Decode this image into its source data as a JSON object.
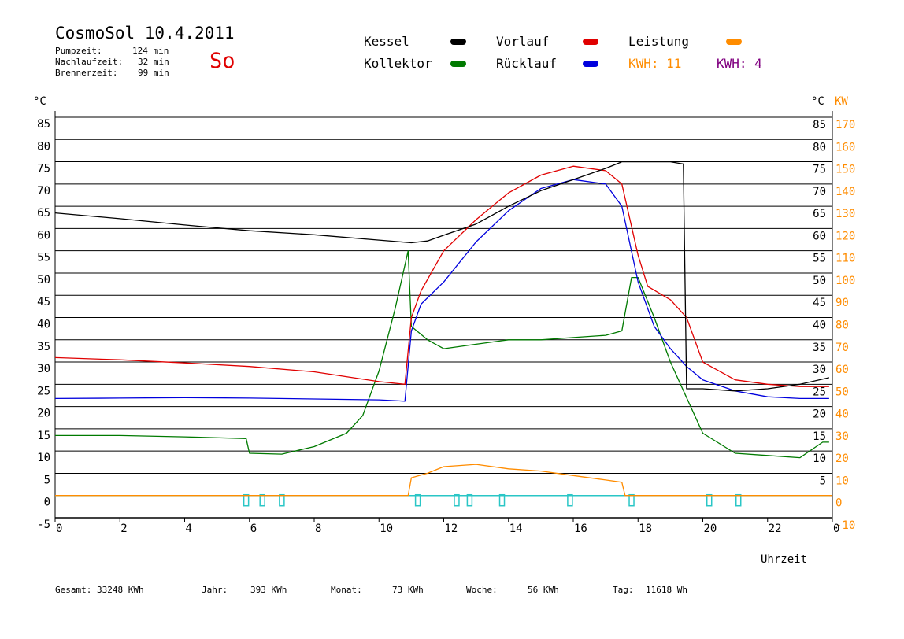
{
  "header": {
    "title": "CosmoSol 10.4.2011",
    "day": "So",
    "stats": [
      {
        "label": "Pumpzeit:",
        "value": "124 min"
      },
      {
        "label": "Nachlaufzeit:",
        "value": "32 min"
      },
      {
        "label": "Brennerzeit:",
        "value": "99 min"
      }
    ]
  },
  "legend": {
    "kessel": {
      "label": "Kessel",
      "color": "#000000"
    },
    "vorlauf": {
      "label": "Vorlauf",
      "color": "#e00000"
    },
    "leistung": {
      "label": "Leistung",
      "color": "#ff8c00"
    },
    "kollektor": {
      "label": "Kollektor",
      "color": "#007a00"
    },
    "ruecklauf": {
      "label": "Rücklauf",
      "color": "#0000dd"
    },
    "kwh1": {
      "label": "KWH: 11",
      "color": "#ff8c00"
    },
    "kwh2": {
      "label": "KWH: 4",
      "color": "#800080"
    }
  },
  "footer": [
    {
      "label": "Gesamt:",
      "value": "33248 KWh"
    },
    {
      "label": "Jahr:",
      "value": "393 KWh"
    },
    {
      "label": "Monat:",
      "value": "73 KWh"
    },
    {
      "label": "Woche:",
      "value": "56 KWh"
    },
    {
      "label": "Tag:",
      "value": "11618 Wh"
    }
  ],
  "chart_data": {
    "type": "line",
    "xlabel": "Uhrzeit",
    "ylabel_left": "°C",
    "ylabel_right_c": "°C",
    "ylabel_right_kw": "KW",
    "xlim": [
      0,
      24
    ],
    "ylim": [
      -5,
      85
    ],
    "x_ticks": [
      "0",
      "2",
      "4",
      "6",
      "8",
      "10",
      "12",
      "14",
      "16",
      "18",
      "20",
      "22",
      "0"
    ],
    "y_ticks_left": [
      "-5",
      "0",
      "5",
      "10",
      "15",
      "20",
      "25",
      "30",
      "35",
      "40",
      "45",
      "50",
      "55",
      "60",
      "65",
      "70",
      "75",
      "80",
      "85"
    ],
    "y_ticks_right_c": [
      "5",
      "10",
      "15",
      "20",
      "25",
      "30",
      "35",
      "40",
      "45",
      "50",
      "55",
      "60",
      "65",
      "70",
      "75",
      "80",
      "85"
    ],
    "y_ticks_right_kw": [
      "-10",
      "0",
      "10",
      "20",
      "30",
      "40",
      "50",
      "60",
      "70",
      "80",
      "90",
      "100",
      "110",
      "120",
      "130",
      "140",
      "150",
      "160",
      "170"
    ],
    "grid": true,
    "series": [
      {
        "name": "Kessel",
        "color": "#000000",
        "x": [
          0,
          2,
          4,
          6,
          8,
          10,
          11,
          11.5,
          12,
          13,
          14,
          15,
          16,
          17,
          17.5,
          18,
          19,
          19.4,
          19.5,
          20,
          21,
          22,
          23,
          23.9
        ],
        "y": [
          63.5,
          62.2,
          60.8,
          59.5,
          58.6,
          57.4,
          56.8,
          57.2,
          58.5,
          61,
          65,
          68.5,
          71,
          73.5,
          75,
          75,
          75,
          74.5,
          24,
          24,
          23.5,
          24,
          25,
          26.5
        ]
      },
      {
        "name": "Vorlauf",
        "color": "#e00000",
        "x": [
          0,
          2,
          4,
          6,
          8,
          10,
          10.8,
          11,
          11.3,
          12,
          13,
          14,
          15,
          16,
          17,
          17.5,
          18,
          18.3,
          19,
          19.5,
          20,
          21,
          22,
          23,
          23.9
        ],
        "y": [
          31,
          30.5,
          29.8,
          29,
          27.8,
          25.6,
          25,
          40,
          46,
          55,
          62,
          68,
          72,
          74,
          73,
          70,
          54,
          47,
          44,
          40,
          30,
          26,
          25,
          24.5,
          24.5
        ]
      },
      {
        "name": "Rücklauf",
        "color": "#0000dd",
        "x": [
          0,
          2,
          4,
          6,
          8,
          10,
          10.8,
          11,
          11.3,
          12,
          13,
          14,
          15,
          16,
          17,
          17.5,
          18,
          18.5,
          19,
          19.5,
          20,
          21,
          22,
          23,
          23.9
        ],
        "y": [
          21.8,
          21.9,
          22,
          21.9,
          21.7,
          21.5,
          21.2,
          37,
          43,
          48,
          57,
          64,
          69,
          71,
          70,
          65,
          48,
          38,
          33,
          29,
          26,
          23.5,
          22.2,
          21.8,
          21.8
        ]
      },
      {
        "name": "Kollektor",
        "color": "#007a00",
        "x": [
          0,
          2,
          4,
          5.9,
          6,
          7,
          8,
          9,
          9.5,
          10,
          10.5,
          10.9,
          11,
          11.5,
          12,
          13,
          14,
          15,
          16,
          17,
          17.5,
          17.8,
          18,
          18.5,
          19,
          19.5,
          20,
          21,
          22,
          23,
          23.7,
          23.9
        ],
        "y": [
          13.5,
          13.5,
          13.2,
          12.8,
          9.5,
          9.3,
          11,
          14,
          18,
          28,
          42,
          55,
          38,
          35,
          33,
          34,
          35,
          35,
          35.5,
          36,
          37,
          49,
          49,
          40,
          30,
          22,
          14,
          9.5,
          9,
          8.5,
          12,
          12
        ]
      },
      {
        "name": "Leistung",
        "color": "#ff8c00",
        "x": [
          0,
          10.9,
          11,
          11.5,
          12,
          13,
          14,
          15,
          16,
          17,
          17.5,
          17.6,
          24
        ],
        "y": [
          0,
          0,
          4,
          5,
          6.5,
          7,
          6,
          5.5,
          4.5,
          3.5,
          3,
          0,
          0
        ]
      }
    ],
    "marker_bars": {
      "color": "#2ac6c6",
      "x": [
        5.9,
        6.4,
        7.0,
        11.2,
        12.4,
        12.8,
        13.8,
        15.9,
        17.8,
        20.2,
        21.1
      ]
    }
  }
}
